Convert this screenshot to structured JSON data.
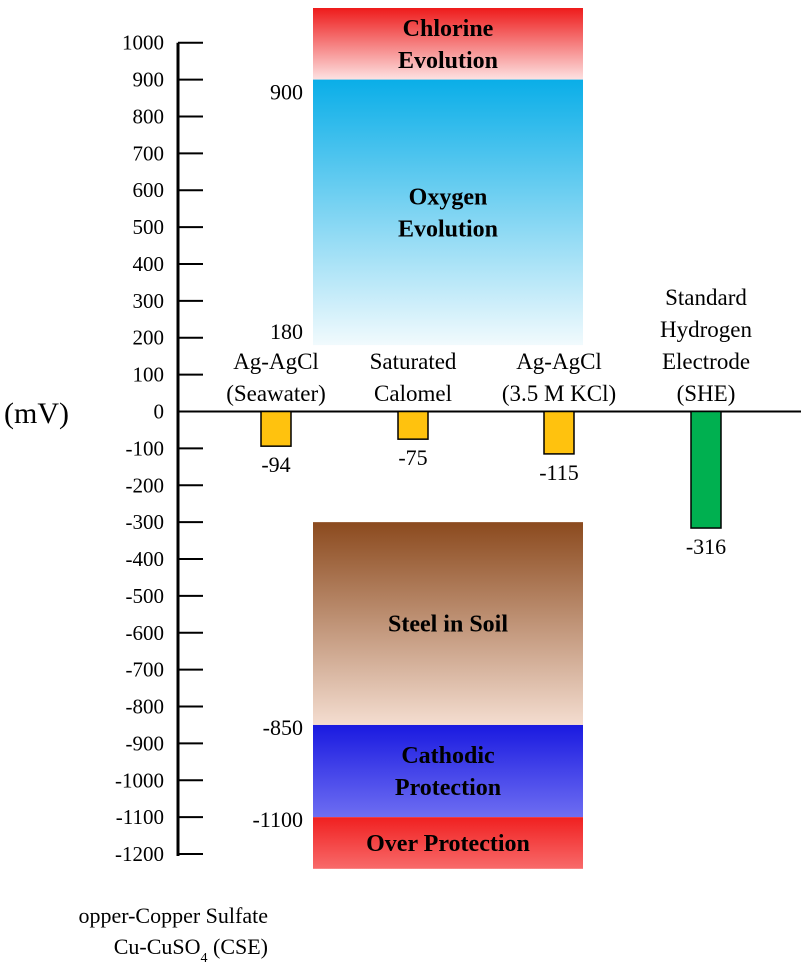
{
  "chart_data": {
    "type": "bar",
    "unit_label": "(mV)",
    "ylim": [
      -1200,
      1000
    ],
    "y_ticks": [
      1000,
      900,
      800,
      700,
      600,
      500,
      400,
      300,
      200,
      100,
      0,
      -100,
      -200,
      -300,
      -400,
      -500,
      -600,
      -700,
      -800,
      -900,
      -1000,
      -1100,
      -1200
    ],
    "y_tick_labels": [
      "1000",
      "900",
      "800",
      "700",
      "600",
      "500",
      "400",
      "300",
      "200",
      "100",
      "0",
      "-100",
      "-200",
      "-300",
      "-400",
      "-500",
      "-600",
      "-700",
      "-800",
      "-900",
      "-1000",
      "-1100",
      "-1200"
    ],
    "regions": [
      {
        "label": [
          "Chlorine",
          "Evolution"
        ],
        "from": 900,
        "to": 1110,
        "colors": [
          "#ee1b1b",
          "#fde2e2"
        ]
      },
      {
        "label": [
          "Oxygen",
          "Evolution"
        ],
        "from": 180,
        "to": 900,
        "colors": [
          "#0aaee8",
          "#f1fafd"
        ]
      },
      {
        "label": [
          "Steel in Soil"
        ],
        "from": -850,
        "to": -300,
        "colors": [
          "#8b4a1e",
          "#f4ddd0"
        ]
      },
      {
        "label": [
          "Cathodic",
          "Protection"
        ],
        "from": -1100,
        "to": -850,
        "colors": [
          "#1a1ae0",
          "#6e6ef2"
        ]
      },
      {
        "label": [
          "Over Protection"
        ],
        "from": -1240,
        "to": -1100,
        "colors": [
          "#f02020",
          "#f86a6a"
        ]
      }
    ],
    "edge_labels": [
      {
        "text": "900",
        "value": 900
      },
      {
        "text": "180",
        "value": 180
      },
      {
        "text": "-850",
        "value": -850
      },
      {
        "text": "-1100",
        "value": -1100
      }
    ],
    "categories": [
      [
        "Ag-AgCl",
        "(Seawater)"
      ],
      [
        "Saturated",
        "Calomel"
      ],
      [
        "Ag-AgCl",
        "(3.5 M KCl)"
      ],
      [
        "Standard",
        "Hydrogen",
        "Electrode",
        "(SHE)"
      ]
    ],
    "values": [
      -94,
      -75,
      -115,
      -316
    ],
    "value_labels": [
      "-94",
      "-75",
      "-115",
      "-316"
    ],
    "bar_colors": [
      "#ffc20e",
      "#ffc20e",
      "#ffc20e",
      "#00b050"
    ],
    "reference": [
      "opper-Copper Sulfate",
      "Cu-CuSO",
      "4",
      " (CSE)"
    ]
  }
}
